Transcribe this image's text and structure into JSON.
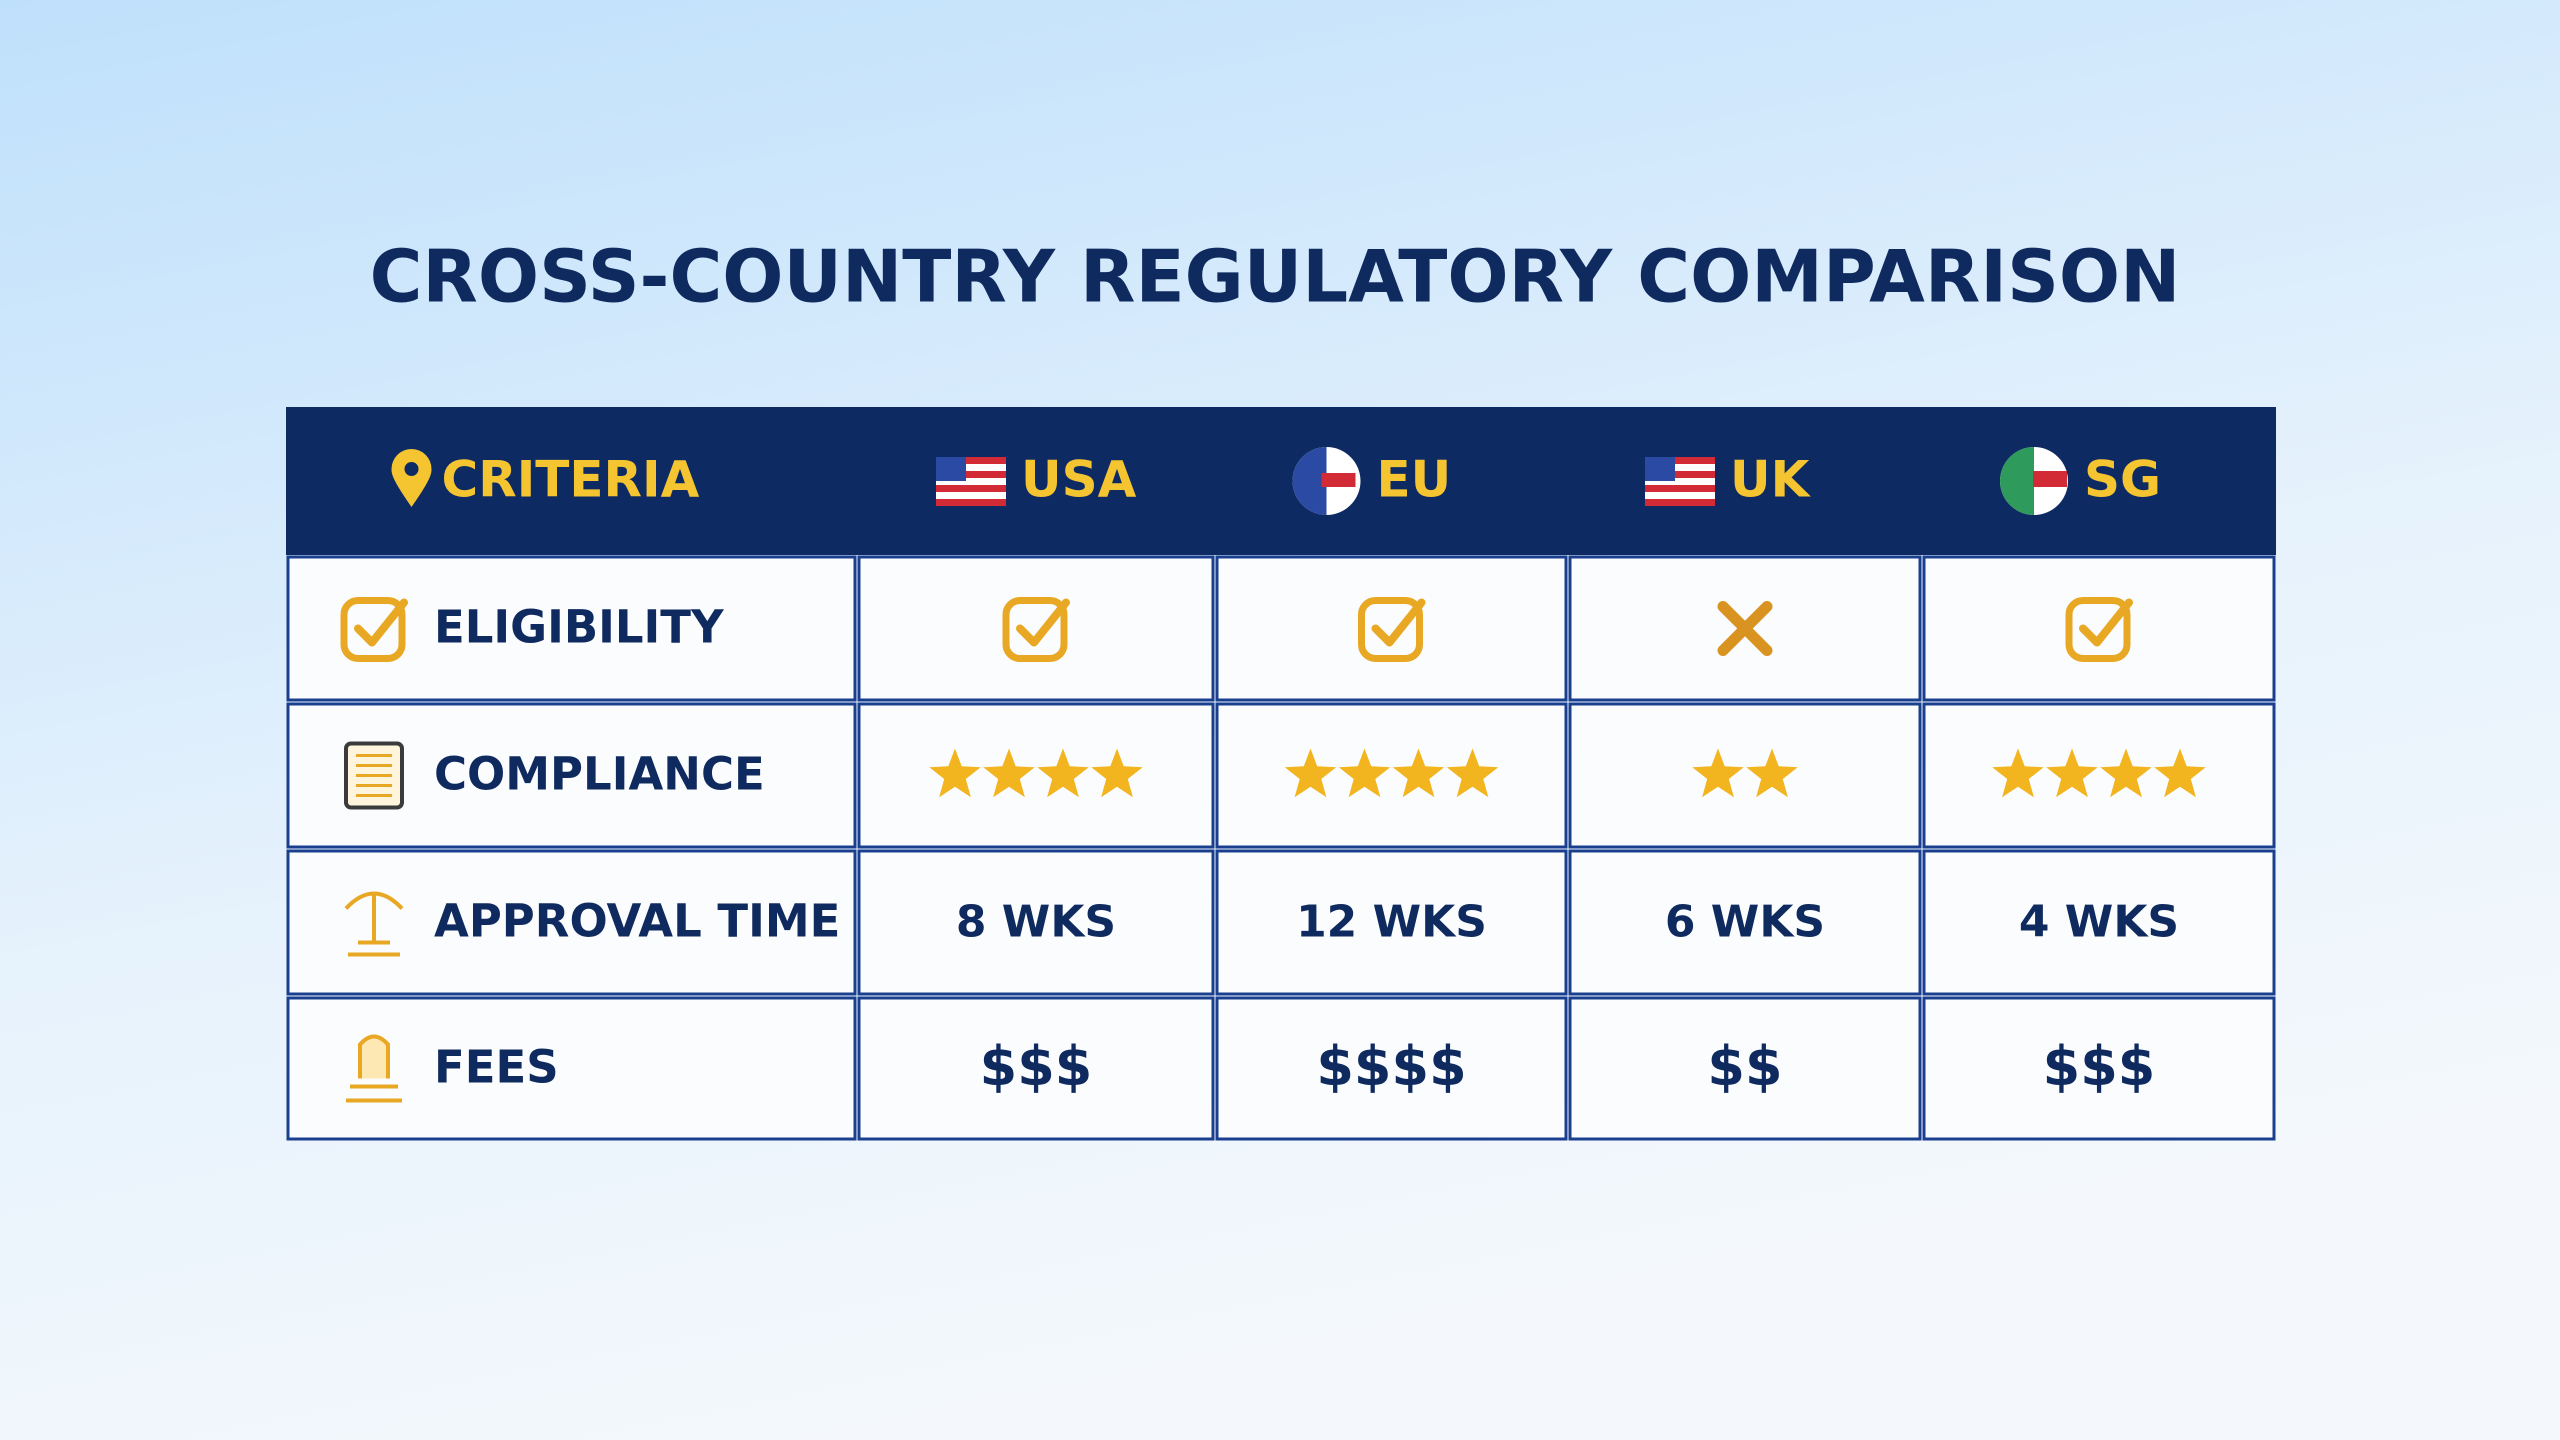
{
  "title": "CROSS-COUNTRY REGULATORY COMPARISON",
  "table": {
    "columns": [
      "CRITERIA",
      "USA",
      "EU",
      "UK",
      "SG"
    ],
    "rows": [
      {
        "label": "ELIGIBILITY",
        "eligible": [
          true,
          true,
          false,
          true
        ]
      },
      {
        "label": "COMPLIANCE",
        "stars": [
          4,
          4,
          2,
          4
        ]
      },
      {
        "label": "APPROVAL TIME",
        "cells": [
          "8 WKS",
          "12 WKS",
          "6 WKS",
          "4 WKS"
        ]
      },
      {
        "label": "FEES",
        "cells": [
          "$$$",
          "$$$$",
          "$$",
          "$$$"
        ]
      }
    ]
  }
}
